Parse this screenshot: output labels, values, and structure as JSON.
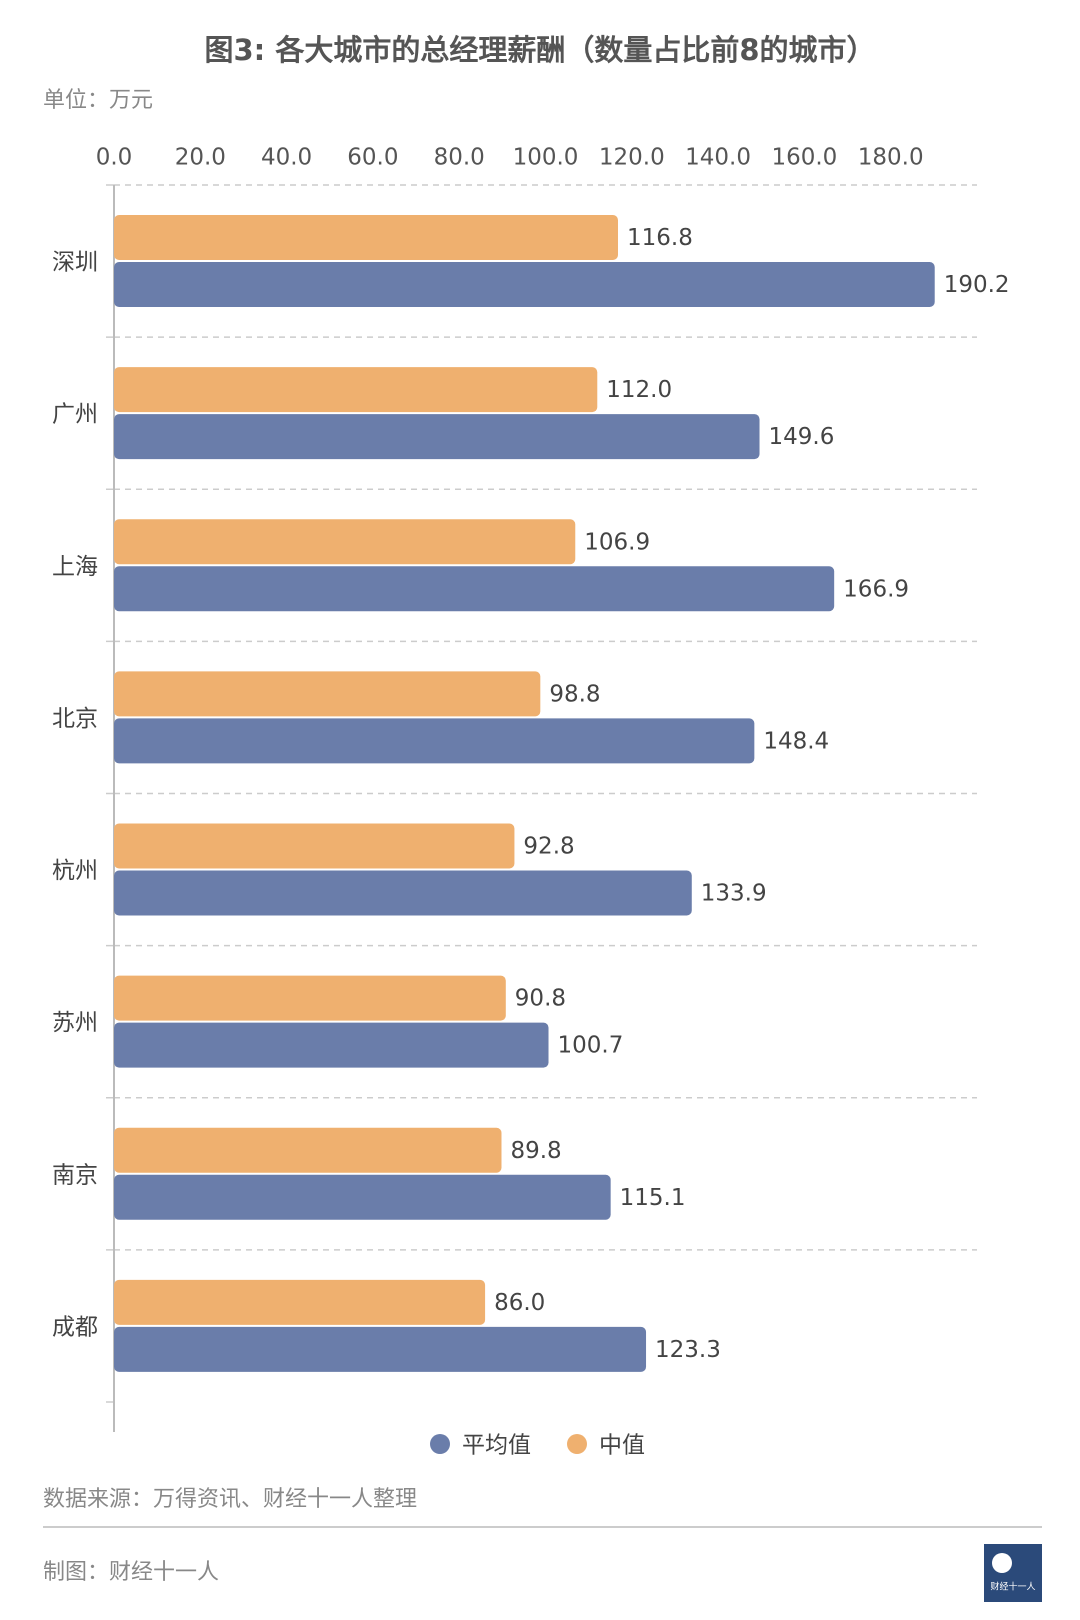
{
  "chart_data": {
    "type": "barh",
    "title": "图3: 各大城市的总经理薪酬（数量占比前8的城市）",
    "unit": "单位：万元",
    "categories": [
      "深圳",
      "广州",
      "上海",
      "北京",
      "杭州",
      "苏州",
      "南京",
      "成都"
    ],
    "series": [
      {
        "name": "平均值",
        "color": "#6a7daa",
        "values": [
          190.2,
          149.6,
          166.9,
          148.4,
          133.9,
          100.7,
          115.1,
          123.3
        ],
        "value_labels": [
          "190.2",
          "149.6",
          "166.9",
          "148.4",
          "133.9",
          "100.7",
          "115.1",
          "123.3"
        ]
      },
      {
        "name": "中值",
        "color": "#efb06f",
        "values": [
          116.8,
          112.0,
          106.9,
          98.8,
          92.8,
          90.8,
          89.8,
          86.0
        ],
        "value_labels": [
          "116.8",
          "112.0",
          "106.9",
          "98.8",
          "92.8",
          "90.8",
          "89.8",
          "86.0"
        ]
      }
    ],
    "xlim": [
      0,
      200
    ],
    "xticks": [
      {
        "value": 0,
        "label": "0.0"
      },
      {
        "value": 20,
        "label": "20.0"
      },
      {
        "value": 40,
        "label": "40.0"
      },
      {
        "value": 60,
        "label": "60.0"
      },
      {
        "value": 80,
        "label": "80.0"
      },
      {
        "value": 100,
        "label": "100.0"
      },
      {
        "value": 120,
        "label": "120.0"
      },
      {
        "value": 140,
        "label": "140.0"
      },
      {
        "value": 160,
        "label": "160.0"
      },
      {
        "value": 180,
        "label": "180.0"
      }
    ],
    "grid": true,
    "source": "数据来源：万得资讯、财经十一人整理",
    "credit": "制图：财经十一人",
    "logo_text": "财经十一人"
  }
}
